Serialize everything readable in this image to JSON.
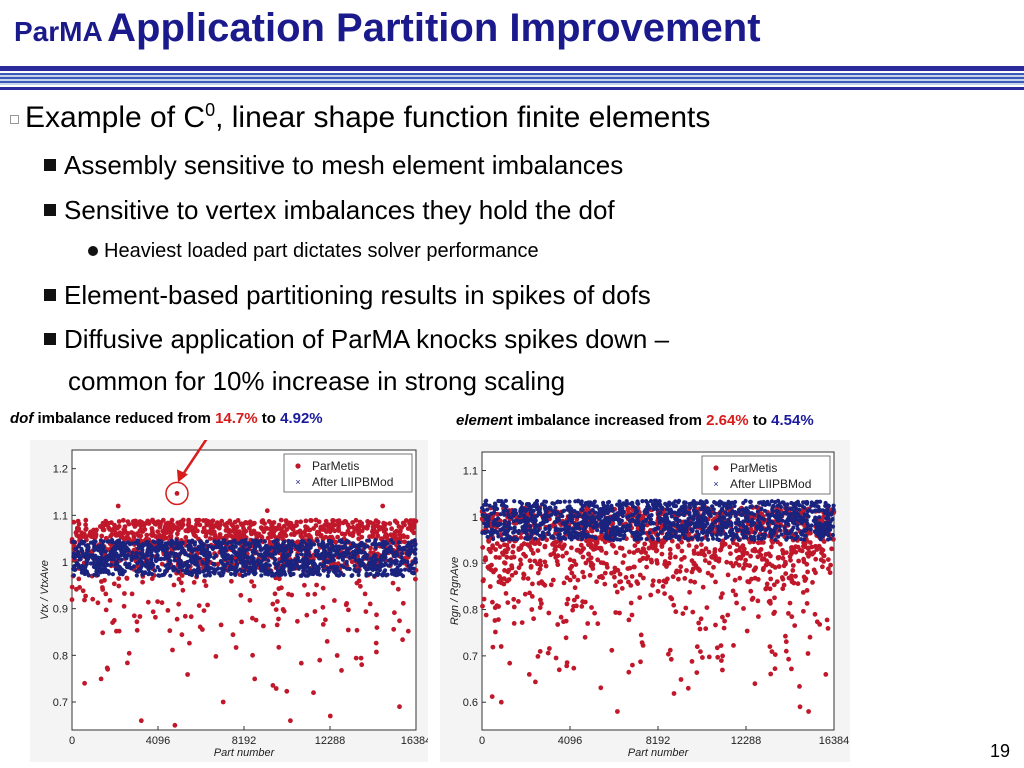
{
  "header": {
    "title_prefix": "ParMA",
    "title_main": "Application Partition Improvement"
  },
  "bullets": {
    "main_pre": "Example of C",
    "main_sup": "0",
    "main_post": ", linear shape function finite elements",
    "l2_1": "Assembly sensitive to mesh element imbalances",
    "l2_2": "Sensitive to vertex imbalances they hold the dof",
    "l3_1": "Heaviest loaded part dictates solver performance",
    "l2_3": "Element-based partitioning results in spikes of dofs",
    "l2_4a": "Diffusive application of ParMA knocks spikes down –",
    "l2_4b": "common for 10% increase in strong scaling"
  },
  "captions": {
    "left_italic": "dof",
    "left_text": " imbalance reduced from ",
    "left_from": "14.7%",
    "left_to_word": " to ",
    "left_to": "4.92%",
    "right_italic": "elemen",
    "right_text": "t imbalance increased from ",
    "right_from": "2.64%",
    "right_to_word": " to ",
    "right_to": "4.54%"
  },
  "page_number": "19",
  "colors": {
    "title": "#1a1a8c",
    "parmetis": "#c0182a",
    "after": "#1a237e",
    "highlight": "#d81b1b"
  },
  "chart_data": [
    {
      "type": "scatter",
      "ylabel": "Vtx / VtxAve",
      "xlabel": "Part number",
      "xlim": [
        0,
        16384
      ],
      "ylim": [
        0.64,
        1.24
      ],
      "xticks": [
        "0",
        "4096",
        "8192",
        "12288",
        "16384"
      ],
      "yticks": [
        "1.2",
        "1.1",
        "1",
        "0.9",
        "0.8",
        "0.7"
      ],
      "legend": "top-right",
      "series": [
        {
          "name": "ParMetis",
          "marker": "dot",
          "band": [
            0.98,
            1.09
          ],
          "outliers": [
            [
              5000,
              1.147
            ],
            [
              2200,
              1.12
            ],
            [
              9300,
              1.11
            ],
            [
              14800,
              1.12
            ],
            [
              600,
              0.74
            ],
            [
              3300,
              0.66
            ],
            [
              4900,
              0.65
            ],
            [
              10400,
              0.66
            ],
            [
              12300,
              0.67
            ],
            [
              15600,
              0.69
            ],
            [
              7200,
              0.7
            ],
            [
              11500,
              0.72
            ],
            [
              1700,
              0.77
            ],
            [
              13800,
              0.78
            ],
            [
              8600,
              0.8
            ]
          ]
        },
        {
          "name": "After LIIPBMod",
          "marker": "x",
          "band": [
            0.97,
            1.047
          ]
        }
      ],
      "annotation": {
        "x": 5000,
        "y": 1.147,
        "shape": "circle-with-arrow"
      }
    },
    {
      "type": "scatter",
      "ylabel": "Rgn / RgnAve",
      "xlabel": "Part number",
      "xlim": [
        0,
        16384
      ],
      "ylim": [
        0.54,
        1.14
      ],
      "xticks": [
        "0",
        "4096",
        "8192",
        "12288",
        "16384"
      ],
      "yticks": [
        "1.1",
        "1",
        "0.9",
        "0.8",
        "0.7",
        "0.6"
      ],
      "legend": "top-right",
      "series": [
        {
          "name": "ParMetis",
          "marker": "dot",
          "band": [
            0.85,
            1.02
          ],
          "outliers": [
            [
              900,
              0.6
            ],
            [
              6300,
              0.58
            ],
            [
              14800,
              0.59
            ],
            [
              15200,
              0.58
            ],
            [
              2200,
              0.66
            ],
            [
              3600,
              0.67
            ],
            [
              7000,
              0.68
            ],
            [
              11200,
              0.7
            ],
            [
              9600,
              0.63
            ],
            [
              13400,
              0.72
            ],
            [
              4800,
              0.74
            ],
            [
              16000,
              0.66
            ],
            [
              1500,
              0.77
            ],
            [
              10200,
              0.78
            ],
            [
              12700,
              0.64
            ]
          ]
        },
        {
          "name": "After LIIPBMod",
          "marker": "x",
          "band": [
            0.95,
            1.035
          ]
        }
      ]
    }
  ]
}
